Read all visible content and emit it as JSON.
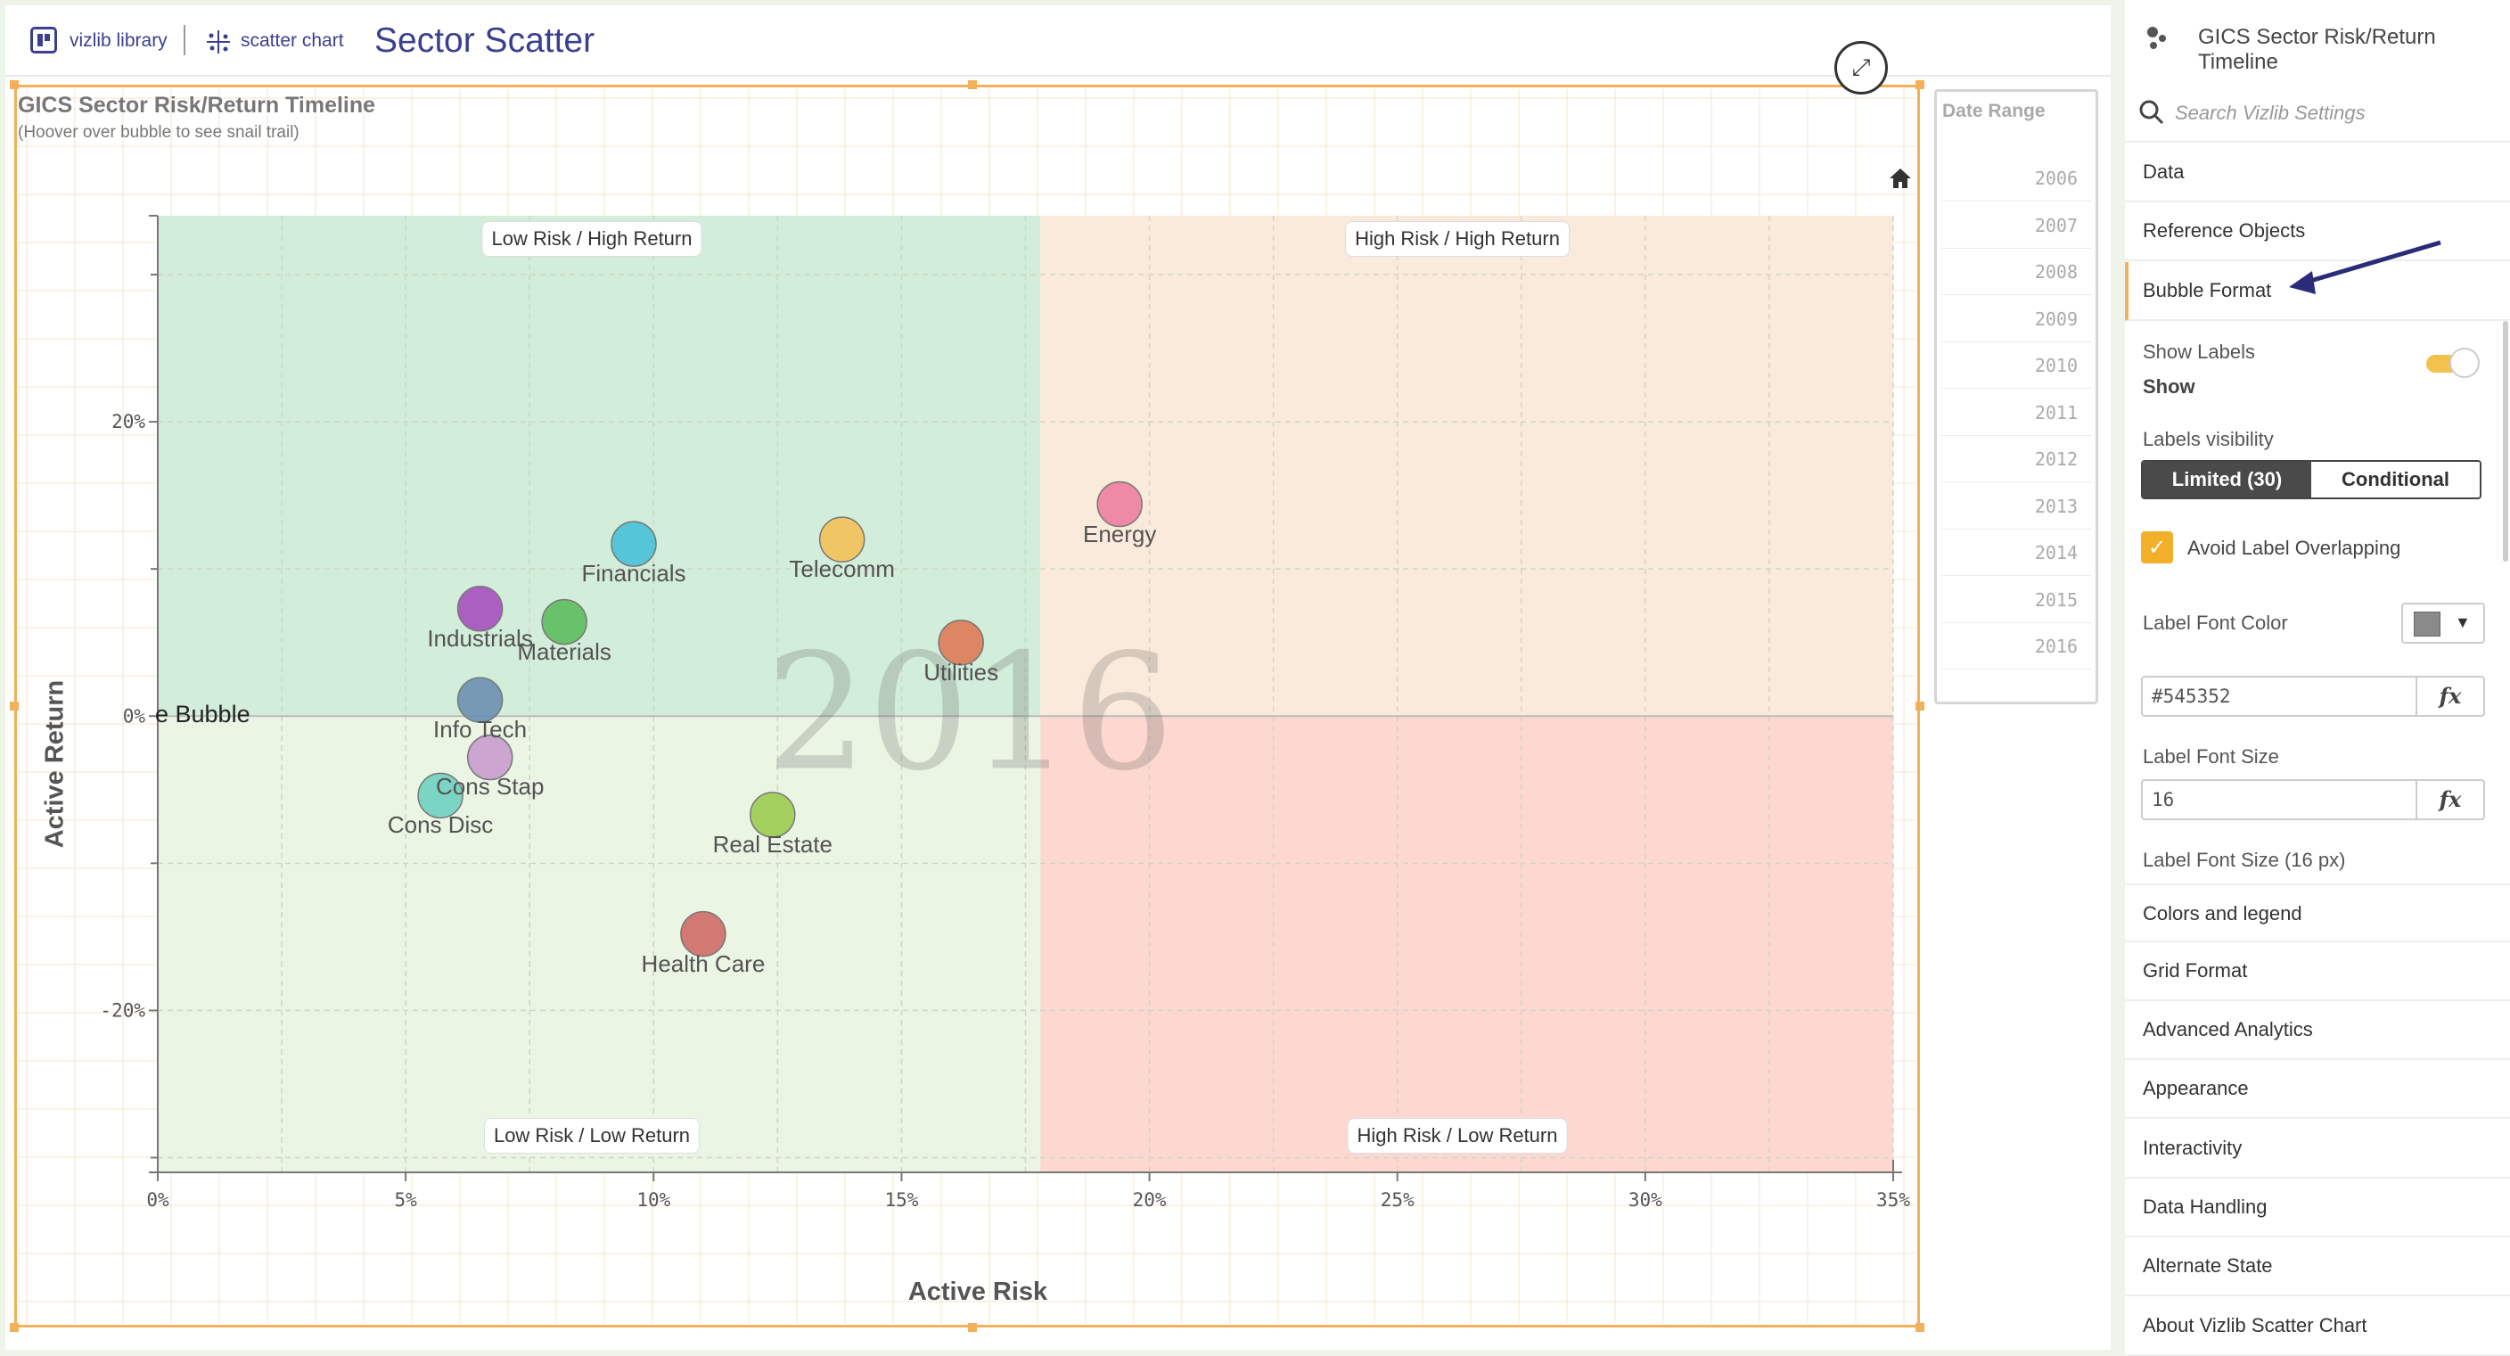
{
  "header": {
    "library_label": "vizlib library",
    "chart_type_label": "scatter chart",
    "page_title": "Sector Scatter"
  },
  "chart": {
    "title": "GICS Sector Risk/Return Timeline",
    "subtitle": "(Hoover over bubble to see snail trail)",
    "x_axis_title": "Active Risk",
    "y_axis_title": "Active Return",
    "year_watermark": "2016",
    "overlay_text": "e Bubble",
    "quadrants": {
      "top_left": "Low Risk / High Return",
      "top_right": "High Risk / High Return",
      "bottom_left": "Low Risk / Low Return",
      "bottom_right": "High Risk / Low Return"
    },
    "colors": {
      "low_risk_high_return": "#d2edd9",
      "high_risk_high_return": "#faeadb",
      "low_risk_low_return": "#eaf5e4",
      "high_risk_low_return": "#fdd8d0",
      "frame": "#f2b05a"
    }
  },
  "chart_data": {
    "type": "scatter",
    "title": "GICS Sector Risk/Return Timeline",
    "xlabel": "Active Risk",
    "ylabel": "Active Return",
    "xlim": [
      0,
      35
    ],
    "ylim": [
      -31,
      34
    ],
    "x_ticks": [
      "0%",
      "5%",
      "10%",
      "15%",
      "20%",
      "25%",
      "30%",
      "35%"
    ],
    "y_ticks": [
      "-20%",
      "0%",
      "20%"
    ],
    "quadrant_divider": {
      "x": 17.8,
      "y": 0
    },
    "points": [
      {
        "name": "Energy",
        "x": 19.4,
        "y": 14.4,
        "color": "#ec7f9f"
      },
      {
        "name": "Financials",
        "x": 9.6,
        "y": 11.7,
        "color": "#46c1d6"
      },
      {
        "name": "Telecomm",
        "x": 13.8,
        "y": 12.0,
        "color": "#f3c057"
      },
      {
        "name": "Industrials",
        "x": 6.5,
        "y": 7.3,
        "color": "#a54fbe"
      },
      {
        "name": "Materials",
        "x": 8.2,
        "y": 6.4,
        "color": "#5cbd5c"
      },
      {
        "name": "Utilities",
        "x": 16.2,
        "y": 5.0,
        "color": "#dd7a55"
      },
      {
        "name": "Info Tech",
        "x": 6.5,
        "y": 1.1,
        "color": "#6b8fb1"
      },
      {
        "name": "Cons Stap",
        "x": 6.7,
        "y": -2.8,
        "color": "#c99ccd"
      },
      {
        "name": "Cons Disc",
        "x": 5.7,
        "y": -5.4,
        "color": "#6fd0c0"
      },
      {
        "name": "Real Estate",
        "x": 12.4,
        "y": -6.7,
        "color": "#9ccd4f"
      },
      {
        "name": "Health Care",
        "x": 11.0,
        "y": -14.8,
        "color": "#cf6b66"
      }
    ]
  },
  "date_range": {
    "title": "Date Range",
    "years": [
      "2006",
      "2007",
      "2008",
      "2009",
      "2010",
      "2011",
      "2012",
      "2013",
      "2014",
      "2015",
      "2016"
    ]
  },
  "settings": {
    "header_title": "GICS Sector Risk/Return Timeline",
    "search_placeholder": "Search Vizlib Settings",
    "sections_top": [
      "Data",
      "Reference Objects",
      "Bubble Format"
    ],
    "show_labels_label": "Show Labels",
    "show_labels_value": "Show",
    "labels_visibility_label": "Labels visibility",
    "labels_visibility_options": [
      "Limited (30)",
      "Conditional"
    ],
    "avoid_overlap_label": "Avoid Label Overlapping",
    "label_font_color_label": "Label Font Color",
    "label_font_color_value": "#545352",
    "label_font_size_label": "Label Font Size",
    "label_font_size_value": "16",
    "label_font_size_px_label": "Label Font Size (16 px)",
    "fx_label": "fx",
    "sections_bottom": [
      "Colors and legend",
      "Grid Format",
      "Advanced Analytics",
      "Appearance",
      "Interactivity",
      "Data Handling",
      "Alternate State",
      "About Vizlib Scatter Chart"
    ]
  }
}
